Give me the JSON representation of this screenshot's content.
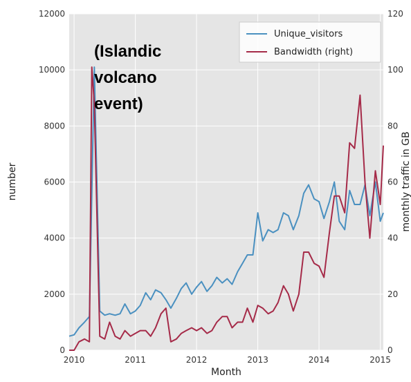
{
  "chart_data": {
    "type": "line",
    "title": "",
    "xlabel": "Month",
    "ylabel_left": "number",
    "ylabel_right": "monthly traffic in GB",
    "xlim": [
      2009.92,
      2015.05
    ],
    "ylim_left": [
      0,
      12000
    ],
    "ylim_right": [
      0,
      120
    ],
    "x_ticks": [
      2010,
      2011,
      2012,
      2013,
      2014,
      2015
    ],
    "x_tick_labels": [
      "2010",
      "2011",
      "2012",
      "2013",
      "2014",
      "2015"
    ],
    "y_ticks_left": [
      0,
      2000,
      4000,
      6000,
      8000,
      10000,
      12000
    ],
    "y_tick_labels_left": [
      "0",
      "2000",
      "4000",
      "6000",
      "8000",
      "10000",
      "12000"
    ],
    "y_ticks_right": [
      0,
      20,
      40,
      60,
      80,
      100,
      120
    ],
    "y_tick_labels_right": [
      "0",
      "20",
      "40",
      "60",
      "80",
      "100",
      "120"
    ],
    "grid": true,
    "legend_position": "top-right",
    "annotation": [
      "(Islandic",
      "volcano",
      "event)"
    ],
    "series": [
      {
        "name": "Unique_visitors",
        "axis": "left",
        "color": "#4a90c0",
        "x": [
          2009.92,
          2010.0,
          2010.08,
          2010.17,
          2010.25,
          2010.33,
          2010.42,
          2010.5,
          2010.58,
          2010.67,
          2010.75,
          2010.83,
          2010.92,
          2011.0,
          2011.08,
          2011.17,
          2011.25,
          2011.33,
          2011.42,
          2011.5,
          2011.58,
          2011.67,
          2011.75,
          2011.83,
          2011.92,
          2012.0,
          2012.08,
          2012.17,
          2012.25,
          2012.33,
          2012.42,
          2012.5,
          2012.58,
          2012.67,
          2012.75,
          2012.83,
          2012.92,
          2013.0,
          2013.08,
          2013.17,
          2013.25,
          2013.33,
          2013.42,
          2013.5,
          2013.58,
          2013.67,
          2013.75,
          2013.83,
          2013.92,
          2014.0,
          2014.08,
          2014.17,
          2014.25,
          2014.33,
          2014.42,
          2014.5,
          2014.58,
          2014.67,
          2014.75,
          2014.83,
          2014.92,
          2015.0,
          2015.05
        ],
        "values": [
          500,
          550,
          800,
          1000,
          1200,
          10100,
          1400,
          1250,
          1300,
          1250,
          1300,
          1650,
          1300,
          1400,
          1600,
          2050,
          1800,
          2150,
          2050,
          1800,
          1500,
          1850,
          2200,
          2400,
          2000,
          2250,
          2450,
          2100,
          2300,
          2600,
          2400,
          2550,
          2350,
          2800,
          3100,
          3400,
          3400,
          4900,
          3900,
          4300,
          4200,
          4300,
          4900,
          4800,
          4300,
          4800,
          5600,
          5900,
          5400,
          5300,
          4700,
          5300,
          6000,
          4600,
          4300,
          5700,
          5200,
          5200,
          5900,
          4800,
          6000,
          4600,
          4900
        ]
      },
      {
        "name": "Bandwidth (right)",
        "axis": "right",
        "color": "#a52a48",
        "x": [
          2009.92,
          2010.0,
          2010.08,
          2010.17,
          2010.25,
          2010.29,
          2010.33,
          2010.42,
          2010.5,
          2010.58,
          2010.67,
          2010.75,
          2010.83,
          2010.92,
          2011.0,
          2011.08,
          2011.17,
          2011.25,
          2011.33,
          2011.42,
          2011.5,
          2011.58,
          2011.67,
          2011.75,
          2011.83,
          2011.92,
          2012.0,
          2012.08,
          2012.17,
          2012.25,
          2012.33,
          2012.42,
          2012.5,
          2012.58,
          2012.67,
          2012.75,
          2012.83,
          2012.92,
          2013.0,
          2013.08,
          2013.17,
          2013.25,
          2013.33,
          2013.42,
          2013.5,
          2013.58,
          2013.67,
          2013.75,
          2013.83,
          2013.92,
          2014.0,
          2014.08,
          2014.17,
          2014.25,
          2014.33,
          2014.42,
          2014.5,
          2014.58,
          2014.67,
          2014.75,
          2014.83,
          2014.92,
          2015.0,
          2015.05
        ],
        "values": [
          0,
          0,
          3,
          4,
          3,
          101,
          88,
          5,
          4,
          10,
          5,
          4,
          7,
          5,
          6,
          7,
          7,
          5,
          8,
          13,
          15,
          3,
          4,
          6,
          7,
          8,
          7,
          8,
          6,
          7,
          10,
          12,
          12,
          8,
          10,
          10,
          15,
          10,
          16,
          15,
          13,
          14,
          17,
          23,
          20,
          14,
          20,
          35,
          35,
          31,
          30,
          26,
          42,
          55,
          55,
          49,
          74,
          72,
          91,
          60,
          40,
          64,
          52,
          73
        ]
      }
    ]
  }
}
